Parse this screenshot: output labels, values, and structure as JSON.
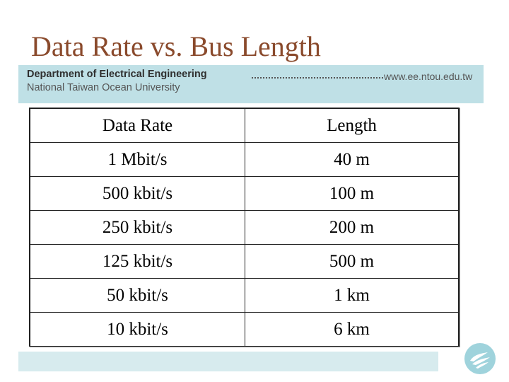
{
  "slide": {
    "title": "Data Rate vs. Bus Length",
    "header": {
      "department": "Department of Electrical Engineering",
      "university": "National Taiwan Ocean University",
      "url": "www.ee.ntou.edu.tw"
    }
  },
  "table": {
    "headers": [
      "Data Rate",
      "Length"
    ],
    "rows": [
      [
        "1 Mbit/s",
        "40 m"
      ],
      [
        "500 kbit/s",
        "100 m"
      ],
      [
        "250 kbit/s",
        "200 m"
      ],
      [
        "125 kbit/s",
        "500 m"
      ],
      [
        "50 kbit/s",
        "1 km"
      ],
      [
        "10 kbit/s",
        "6 km"
      ]
    ]
  },
  "colors": {
    "title": "#8a4a2c",
    "header_band": "#bfe0e6",
    "footer_band": "#d7ebee",
    "logo": "#9fd3dc"
  },
  "icons": {
    "logo": "university-logo-icon"
  }
}
